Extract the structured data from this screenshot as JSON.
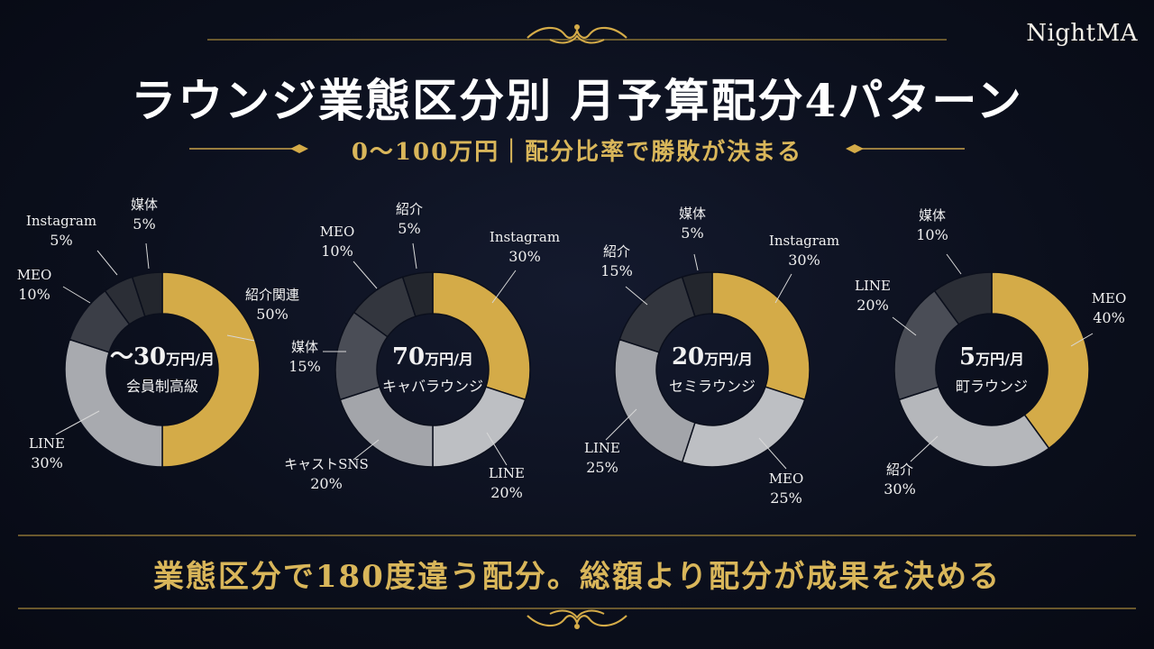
{
  "brand": "NightMA",
  "title": "ラウンジ業態区分別 月予算配分4パターン",
  "subtitle": "0〜100万円｜配分比率で勝敗が決まる",
  "footer": "業態区分で180度違う配分。総額より配分が成果を決める",
  "colors": {
    "gold": "#d4ab48",
    "dark_gold": "#c9a24a",
    "dark1": "#2b2e36",
    "dark2": "#3b3e47",
    "gray": "#a3a5aa",
    "light_gray": "#bdbfc3",
    "label": "#f1f1f1"
  },
  "chart_data": [
    {
      "type": "pie",
      "budget_prefix": "〜",
      "budget_num": "30",
      "budget_unit": "万円/月",
      "category": "会員制高級",
      "slices": [
        {
          "name": "紹介関連",
          "value": 50,
          "pct": "50%",
          "color": "#d4ab48"
        },
        {
          "name": "LINE",
          "value": 30,
          "pct": "30%",
          "color": "#a8aaaf"
        },
        {
          "name": "MEO",
          "value": 10,
          "pct": "10%",
          "color": "#3b3e47"
        },
        {
          "name": "Instagram",
          "value": 5,
          "pct": "5%",
          "color": "#2b2e36"
        },
        {
          "name": "媒体",
          "value": 5,
          "pct": "5%",
          "color": "#23262d"
        }
      ]
    },
    {
      "type": "pie",
      "budget_prefix": "",
      "budget_num": "70",
      "budget_unit": "万円/月",
      "category": "キャバラウンジ",
      "slices": [
        {
          "name": "Instagram",
          "value": 30,
          "pct": "30%",
          "color": "#d4ab48"
        },
        {
          "name": "LINE",
          "value": 20,
          "pct": "20%",
          "color": "#bdbfc3"
        },
        {
          "name": "キャストSNS",
          "value": 20,
          "pct": "20%",
          "color": "#a3a5aa"
        },
        {
          "name": "媒体",
          "value": 15,
          "pct": "15%",
          "color": "#4a4d56"
        },
        {
          "name": "MEO",
          "value": 10,
          "pct": "10%",
          "color": "#33363e"
        },
        {
          "name": "紹介",
          "value": 5,
          "pct": "5%",
          "color": "#23262d"
        }
      ]
    },
    {
      "type": "pie",
      "budget_prefix": "",
      "budget_num": "20",
      "budget_unit": "万円/月",
      "category": "セミラウンジ",
      "slices": [
        {
          "name": "Instagram",
          "value": 30,
          "pct": "30%",
          "color": "#d4ab48"
        },
        {
          "name": "MEO",
          "value": 25,
          "pct": "25%",
          "color": "#bdbfc3"
        },
        {
          "name": "LINE",
          "value": 25,
          "pct": "25%",
          "color": "#a3a5aa"
        },
        {
          "name": "紹介",
          "value": 15,
          "pct": "15%",
          "color": "#33363e"
        },
        {
          "name": "媒体",
          "value": 5,
          "pct": "5%",
          "color": "#23262d"
        }
      ]
    },
    {
      "type": "pie",
      "budget_prefix": "",
      "budget_num": "5",
      "budget_unit": "万円/月",
      "category": "町ラウンジ",
      "slices": [
        {
          "name": "MEO",
          "value": 40,
          "pct": "40%",
          "color": "#d4ab48"
        },
        {
          "name": "紹介",
          "value": 30,
          "pct": "30%",
          "color": "#b5b7bb"
        },
        {
          "name": "LINE",
          "value": 20,
          "pct": "20%",
          "color": "#4a4d56"
        },
        {
          "name": "媒体",
          "value": 10,
          "pct": "10%",
          "color": "#2b2e36"
        }
      ]
    }
  ]
}
